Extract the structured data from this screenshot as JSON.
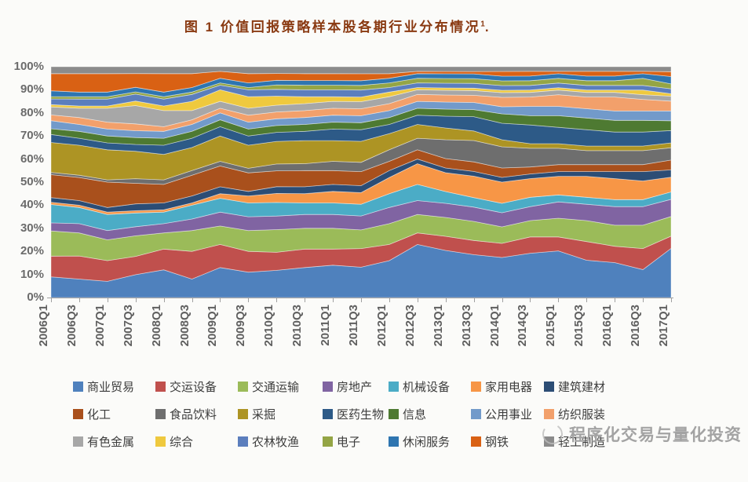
{
  "title": {
    "text": "图 1  价值回报策略样本股各期行业分布情况",
    "superscript": "1",
    "suffix": ".",
    "color": "#8a3a12"
  },
  "watermark": {
    "text": "程序化交易与量化投资",
    "icon": "scribble-circle-logo",
    "color": "#a3a3a3"
  },
  "axis": {
    "y_ticks": [
      "100%",
      "90%",
      "80%",
      "70%",
      "60%",
      "50%",
      "40%",
      "30%",
      "20%",
      "10%",
      "0%"
    ],
    "tick_color": "#6b6b6b",
    "line_color": "#a0a0a0"
  },
  "chart_data": {
    "type": "area",
    "stacked": true,
    "percent_stacked": true,
    "title": "图 1 价值回报策略样本股各期行业分布情况",
    "xlabel": "",
    "ylabel": "",
    "ylim": [
      0,
      100
    ],
    "grid": false,
    "legend_position": "bottom",
    "x": [
      "2006Q1",
      "2006Q3",
      "2007Q1",
      "2007Q3",
      "2008Q1",
      "2008Q3",
      "2009Q1",
      "2009Q3",
      "2010Q1",
      "2010Q3",
      "2011Q1",
      "2011Q3",
      "2012Q1",
      "2012Q3",
      "2013Q1",
      "2013Q3",
      "2014Q1",
      "2014Q3",
      "2015Q1",
      "2015Q3",
      "2016Q1",
      "2016Q3",
      "2017Q1"
    ],
    "series": [
      {
        "name": "商业贸易",
        "color": "#4F81BD",
        "values": [
          9,
          8,
          7,
          10,
          12,
          8,
          13,
          11,
          12,
          13,
          14,
          13,
          16,
          23,
          20,
          18,
          17,
          19,
          20,
          16,
          15,
          12,
          20
        ]
      },
      {
        "name": "交运设备",
        "color": "#C0504D",
        "values": [
          9,
          10,
          9,
          8,
          9,
          12,
          10,
          9,
          8,
          8,
          7,
          8,
          7,
          5,
          6,
          6,
          6,
          7,
          6,
          8,
          7,
          9,
          5
        ]
      },
      {
        "name": "交通运输",
        "color": "#9BBB59",
        "values": [
          11,
          10,
          9,
          9,
          7,
          9,
          8,
          9,
          10,
          9,
          9,
          8,
          9,
          8,
          8,
          8,
          7,
          7,
          8,
          9,
          9,
          10,
          8
        ]
      },
      {
        "name": "房地产",
        "color": "#8064A2",
        "values": [
          3.5,
          4,
          4,
          4,
          4,
          5,
          6,
          6,
          6,
          6,
          6,
          6,
          7,
          6,
          6,
          6,
          6,
          6,
          7,
          7,
          8,
          8,
          7
        ]
      },
      {
        "name": "机械设备",
        "color": "#4BACC6",
        "values": [
          8,
          7,
          7,
          6,
          5,
          6,
          6,
          6,
          6,
          5,
          5,
          5,
          6,
          7,
          5,
          4,
          4,
          4,
          3,
          3,
          3,
          3,
          3
        ]
      },
      {
        "name": "家用电器",
        "color": "#F79646",
        "values": [
          1,
          1,
          1,
          1,
          1,
          1,
          2,
          3,
          4,
          4,
          5,
          5,
          7,
          9,
          8,
          9,
          9,
          8,
          8,
          9,
          9,
          8,
          6
        ]
      },
      {
        "name": "建筑建材",
        "color": "#2C4D75",
        "values": [
          2,
          2,
          2,
          3,
          3,
          3,
          3,
          2,
          3,
          3,
          3,
          3,
          3,
          2,
          2,
          2,
          2,
          2,
          2,
          2,
          3,
          4,
          3
        ]
      },
      {
        "name": "化工",
        "color": "#A9501C",
        "values": [
          10,
          10,
          11,
          9,
          8,
          9,
          9,
          8,
          7,
          7,
          6,
          6,
          4,
          4,
          4,
          4,
          4,
          3,
          3,
          3,
          3,
          3,
          4
        ]
      },
      {
        "name": "食品饮料",
        "color": "#6E6E6E",
        "values": [
          1,
          1,
          1,
          2,
          2,
          2,
          2,
          2,
          3,
          3,
          4,
          4,
          5,
          5,
          8,
          9,
          9,
          8,
          7,
          6,
          6,
          6,
          5
        ]
      },
      {
        "name": "采掘",
        "color": "#AD9424",
        "values": [
          13,
          13,
          13,
          12,
          11,
          10,
          11,
          10,
          10,
          10,
          9,
          9,
          7,
          6,
          5,
          4,
          3,
          2,
          2,
          2,
          2,
          2,
          2
        ]
      },
      {
        "name": "医药生物",
        "color": "#2D5A87",
        "values": [
          3.5,
          3,
          3,
          3,
          4,
          4,
          4,
          4,
          4,
          4,
          5,
          5,
          4,
          4,
          5,
          6,
          7,
          8,
          7,
          7,
          6,
          6,
          5
        ]
      },
      {
        "name": "信息",
        "color": "#4E7A32",
        "values": [
          2.5,
          3,
          3,
          3,
          3,
          3,
          3,
          3,
          3,
          3,
          3,
          3,
          3,
          3,
          3,
          3,
          4,
          4,
          5,
          5,
          5,
          5,
          4
        ]
      },
      {
        "name": "公用事业",
        "color": "#729ACA",
        "values": [
          3.5,
          3,
          3,
          3,
          3,
          3,
          3,
          3,
          3,
          3,
          3,
          3,
          3,
          3,
          3,
          3,
          3,
          4,
          4,
          4,
          4,
          4,
          4
        ]
      },
      {
        "name": "纺织服装",
        "color": "#F2A06B",
        "values": [
          2.5,
          3,
          3,
          3,
          2,
          2,
          2,
          3,
          3,
          3,
          3,
          3,
          3,
          3,
          3,
          3,
          4,
          4,
          5,
          5,
          6,
          5,
          4
        ]
      },
      {
        "name": "有色金属",
        "color": "#A7A7A7",
        "values": [
          3.5,
          4,
          6,
          8,
          7,
          4,
          3,
          3,
          3,
          3,
          3,
          3,
          3,
          2,
          2,
          2,
          2,
          2,
          2,
          2,
          2,
          2,
          2
        ]
      },
      {
        "name": "综合",
        "color": "#EFC93E",
        "values": [
          1,
          1,
          1,
          2,
          2,
          4,
          5,
          5,
          4,
          3,
          2,
          2,
          2,
          1,
          1,
          1,
          1,
          1,
          1,
          1,
          1,
          2,
          1
        ]
      },
      {
        "name": "农林牧渔",
        "color": "#5B7EBD",
        "values": [
          2.5,
          3,
          3,
          3,
          3,
          3,
          2,
          3,
          3,
          3,
          3,
          3,
          2,
          2,
          2,
          2,
          2,
          2,
          2,
          2,
          2,
          2,
          2
        ]
      },
      {
        "name": "电子",
        "color": "#94A545",
        "values": [
          1,
          1,
          1,
          1,
          1,
          1,
          1,
          1,
          2,
          2,
          2,
          2,
          2,
          2,
          2,
          2,
          2,
          2,
          2,
          2,
          2,
          3,
          2
        ]
      },
      {
        "name": "休闲服务",
        "color": "#2E75B0",
        "values": [
          2.5,
          2,
          2,
          2,
          2,
          2,
          2,
          2,
          2,
          2,
          2,
          2,
          2,
          2,
          2,
          2,
          2,
          2,
          2,
          2,
          2,
          2,
          3
        ]
      },
      {
        "name": "钢铁",
        "color": "#D96114",
        "values": [
          7.5,
          8,
          8,
          6,
          8,
          6,
          3,
          4,
          3,
          3,
          3,
          3,
          2,
          1,
          1,
          1,
          2,
          2,
          1,
          2,
          2,
          1,
          2
        ]
      },
      {
        "name": "轻工制造",
        "color": "#8B8B8B",
        "values": [
          3,
          3,
          3,
          3,
          3,
          3,
          2,
          3,
          3,
          3,
          3,
          3,
          3,
          2,
          2,
          2,
          2,
          2,
          2,
          2,
          2,
          2,
          2
        ]
      }
    ],
    "legend_rows": [
      [
        0,
        1,
        2,
        3,
        4,
        5,
        6
      ],
      [
        7,
        8,
        9,
        10,
        11,
        12,
        13
      ],
      [
        14,
        15,
        16,
        17,
        18,
        19,
        20
      ]
    ],
    "legend_col_widths": [
      105,
      105,
      108,
      84,
      105,
      93,
      110
    ]
  }
}
